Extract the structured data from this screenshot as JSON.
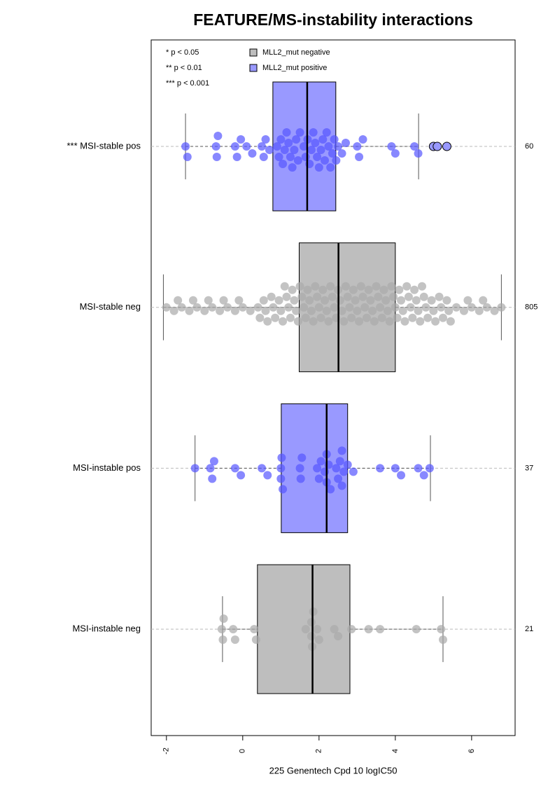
{
  "chart_data": {
    "type": "box",
    "title": "FEATURE/MS-instability interactions",
    "xlabel": "225 Genentech Cpd 10 logIC50",
    "xlim": [
      -2.4,
      7.14
    ],
    "xticks": [
      -2,
      0,
      2,
      4,
      6
    ],
    "notes": [
      "* p < 0.05",
      "** p < 0.01",
      "*** p < 0.001"
    ],
    "legend": [
      {
        "name": "MLL2_mut negative",
        "color": "#bebebe"
      },
      {
        "name": "MLL2_mut positive",
        "color": "#9999ff"
      }
    ],
    "categories": [
      "*** MSI-stable pos",
      "MSI-stable neg",
      "MSI-instable pos",
      "MSI-instable neg"
    ],
    "counts": [
      60,
      805,
      37,
      21
    ],
    "groups": [
      {
        "color": "#9999ff",
        "point_color": "#5555ff",
        "min": -1.5,
        "q1": 0.79,
        "median": 1.69,
        "q3": 2.44,
        "max": 4.61,
        "outliers": [
          5.0,
          5.1,
          5.35
        ],
        "points": [
          -1.5,
          -1.45,
          -0.7,
          -0.68,
          -0.65,
          -0.2,
          -0.15,
          -0.05,
          0.1,
          0.25,
          0.5,
          0.55,
          0.6,
          0.7,
          0.9,
          0.95,
          1.0,
          1.05,
          1.1,
          1.15,
          1.2,
          1.25,
          1.3,
          1.35,
          1.4,
          1.45,
          1.5,
          1.6,
          1.65,
          1.7,
          1.75,
          1.8,
          1.85,
          1.9,
          1.95,
          2.0,
          2.05,
          2.1,
          2.15,
          2.2,
          2.25,
          2.3,
          2.35,
          2.4,
          2.45,
          2.5,
          2.6,
          2.7,
          3.0,
          3.05,
          3.15,
          3.9,
          4.0,
          4.5,
          4.6,
          5.05
        ]
      },
      {
        "color": "#bebebe",
        "point_color": "#aaaaaa",
        "min": -2.08,
        "q1": 1.48,
        "median": 2.51,
        "q3": 4.0,
        "max": 6.78,
        "outliers": [],
        "points": [
          -2.0,
          -1.8,
          -1.6,
          -1.4,
          -1.2,
          -1.0,
          -0.8,
          -0.6,
          -0.4,
          -0.2,
          0.0,
          0.2,
          0.4,
          0.6,
          0.8,
          1.0,
          1.2,
          1.4,
          1.6,
          1.8,
          2.0,
          2.2,
          2.4,
          2.6,
          2.8,
          3.0,
          3.2,
          3.4,
          3.6,
          3.8,
          4.0,
          4.2,
          4.4,
          4.6,
          4.8,
          5.0,
          5.2,
          5.4,
          5.6,
          5.8,
          6.0,
          6.2,
          6.4,
          6.6,
          6.78,
          0.45,
          0.55,
          0.65,
          0.75,
          0.85,
          0.95,
          1.05,
          1.15,
          1.25,
          1.35,
          1.45,
          1.55,
          1.65,
          1.75,
          1.85,
          1.95,
          2.05,
          2.15,
          2.25,
          2.35,
          2.45,
          2.55,
          2.65,
          2.75,
          2.85,
          2.95,
          3.05,
          3.15,
          3.25,
          3.35,
          3.45,
          3.55,
          3.65,
          3.75,
          3.85,
          3.95,
          4.05,
          4.15,
          4.25,
          4.35,
          4.45,
          4.55,
          4.65,
          4.75,
          4.85,
          4.95,
          5.05,
          5.15,
          5.25,
          5.35,
          5.45,
          1.1,
          1.3,
          1.5,
          1.7,
          1.9,
          2.1,
          2.3,
          2.5,
          2.7,
          2.9,
          3.1,
          3.3,
          3.5,
          3.7,
          3.9,
          4.1,
          4.3,
          4.5,
          4.7,
          -1.7,
          -1.3,
          -0.9,
          -0.5,
          -0.1,
          5.9,
          6.3
        ]
      },
      {
        "color": "#9999ff",
        "point_color": "#5555ff",
        "min": -1.25,
        "q1": 1.01,
        "median": 2.2,
        "q3": 2.75,
        "max": 4.92,
        "outliers": [],
        "points": [
          -1.25,
          -0.85,
          -0.8,
          -0.75,
          -0.2,
          -0.05,
          0.5,
          0.65,
          1.0,
          1.0,
          1.02,
          1.05,
          1.5,
          1.52,
          1.55,
          1.95,
          2.0,
          2.05,
          2.15,
          2.2,
          2.2,
          2.25,
          2.3,
          2.45,
          2.5,
          2.55,
          2.6,
          2.6,
          2.65,
          2.75,
          2.9,
          3.6,
          4.0,
          4.15,
          4.6,
          4.75,
          4.9
        ]
      },
      {
        "color": "#bebebe",
        "point_color": "#aaaaaa",
        "min": -0.53,
        "q1": 0.385,
        "median": 1.83,
        "q3": 2.81,
        "max": 5.25,
        "outliers": [],
        "points": [
          -0.55,
          -0.52,
          -0.5,
          -0.25,
          -0.2,
          0.3,
          0.35,
          1.65,
          1.8,
          1.8,
          1.82,
          1.85,
          1.95,
          2.0,
          2.4,
          2.5,
          2.85,
          3.3,
          3.6,
          4.55,
          5.2,
          5.25
        ]
      }
    ]
  }
}
